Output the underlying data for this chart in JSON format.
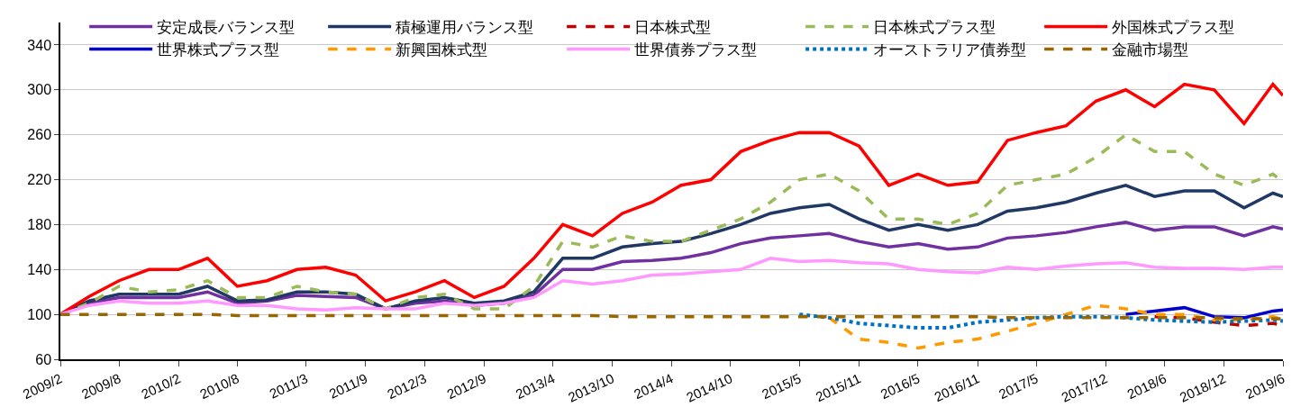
{
  "chart_data": {
    "type": "line",
    "x": [
      "2009-02",
      "2009-05",
      "2009-08",
      "2009-11",
      "2010-02",
      "2010-05",
      "2010-08",
      "2010-11",
      "2011-02",
      "2011-05",
      "2011-08",
      "2011-11",
      "2012-02",
      "2012-05",
      "2012-08",
      "2012-11",
      "2013-02",
      "2013-05",
      "2013-08",
      "2013-11",
      "2014-02",
      "2014-05",
      "2014-08",
      "2014-11",
      "2015-02",
      "2015-05",
      "2015-08",
      "2015-11",
      "2016-02",
      "2016-05",
      "2016-08",
      "2016-11",
      "2017-02",
      "2017-05",
      "2017-08",
      "2017-11",
      "2018-02",
      "2018-05",
      "2018-08",
      "2018-11",
      "2019-02",
      "2019-05",
      "2019-06"
    ],
    "series": [
      {
        "name": "安定成長バランス型",
        "color": "#7030a0",
        "line_style": "solid",
        "values": [
          100,
          110,
          115,
          115,
          115,
          120,
          110,
          112,
          117,
          116,
          115,
          105,
          110,
          112,
          108,
          110,
          117,
          140,
          140,
          147,
          148,
          150,
          155,
          163,
          168,
          170,
          172,
          165,
          160,
          163,
          158,
          160,
          168,
          170,
          173,
          178,
          182,
          175,
          178,
          178,
          170,
          178,
          176
        ]
      },
      {
        "name": "積極運用バランス型",
        "color": "#1f3864",
        "line_style": "solid",
        "values": [
          100,
          112,
          118,
          118,
          118,
          125,
          112,
          113,
          120,
          120,
          118,
          105,
          112,
          115,
          110,
          112,
          120,
          150,
          150,
          160,
          163,
          165,
          172,
          180,
          190,
          195,
          198,
          185,
          175,
          180,
          175,
          180,
          192,
          195,
          200,
          208,
          215,
          205,
          210,
          210,
          195,
          208,
          205
        ]
      },
      {
        "name": "日本株式型",
        "color": "#c00000",
        "line_style": "dashed",
        "values": [
          null,
          null,
          null,
          null,
          null,
          null,
          null,
          null,
          null,
          null,
          null,
          null,
          null,
          null,
          null,
          null,
          null,
          null,
          null,
          null,
          null,
          null,
          null,
          null,
          null,
          null,
          null,
          null,
          null,
          null,
          null,
          null,
          null,
          null,
          null,
          null,
          null,
          98,
          97,
          93,
          90,
          92,
          90
        ]
      },
      {
        "name": "日本株式プラス型",
        "color": "#9bbb59",
        "line_style": "dashed",
        "values": [
          100,
          110,
          125,
          120,
          122,
          130,
          115,
          115,
          125,
          120,
          118,
          105,
          115,
          118,
          105,
          105,
          125,
          165,
          160,
          170,
          165,
          165,
          175,
          185,
          200,
          220,
          225,
          210,
          185,
          185,
          180,
          190,
          215,
          220,
          225,
          240,
          260,
          245,
          245,
          225,
          215,
          225,
          218
        ]
      },
      {
        "name": "外国株式プラス型",
        "color": "#ff0000",
        "line_style": "solid",
        "values": [
          100,
          116,
          130,
          140,
          140,
          150,
          125,
          130,
          140,
          142,
          135,
          112,
          120,
          130,
          115,
          125,
          150,
          180,
          170,
          190,
          200,
          215,
          220,
          245,
          255,
          262,
          262,
          250,
          215,
          225,
          215,
          218,
          255,
          262,
          268,
          290,
          300,
          285,
          305,
          300,
          270,
          305,
          295
        ]
      },
      {
        "name": "世界株式プラス型",
        "color": "#0000cc",
        "line_style": "solid",
        "values": [
          null,
          null,
          null,
          null,
          null,
          null,
          null,
          null,
          null,
          null,
          null,
          null,
          null,
          null,
          null,
          null,
          null,
          null,
          null,
          null,
          null,
          null,
          null,
          null,
          null,
          null,
          null,
          null,
          null,
          null,
          null,
          null,
          null,
          null,
          null,
          null,
          100,
          103,
          106,
          98,
          97,
          103,
          104
        ]
      },
      {
        "name": "新興国株式型",
        "color": "#ff9900",
        "line_style": "dashed",
        "values": [
          null,
          null,
          null,
          null,
          null,
          null,
          null,
          null,
          null,
          null,
          null,
          null,
          null,
          null,
          null,
          null,
          null,
          null,
          null,
          null,
          null,
          null,
          null,
          null,
          null,
          null,
          97,
          78,
          75,
          70,
          75,
          78,
          85,
          92,
          100,
          108,
          105,
          100,
          100,
          95,
          95,
          98,
          95
        ]
      },
      {
        "name": "世界債券プラス型",
        "color": "#ff99ff",
        "line_style": "solid",
        "values": [
          100,
          108,
          112,
          110,
          110,
          112,
          108,
          108,
          105,
          104,
          106,
          105,
          105,
          110,
          108,
          110,
          115,
          130,
          127,
          130,
          135,
          136,
          138,
          140,
          150,
          147,
          148,
          146,
          145,
          140,
          138,
          137,
          142,
          140,
          143,
          145,
          146,
          142,
          141,
          141,
          140,
          142,
          142
        ]
      },
      {
        "name": "オーストラリア債券型",
        "color": "#0070c0",
        "line_style": "dotted",
        "values": [
          null,
          null,
          null,
          null,
          null,
          null,
          null,
          null,
          null,
          null,
          null,
          null,
          null,
          null,
          null,
          null,
          null,
          null,
          null,
          null,
          null,
          null,
          null,
          null,
          null,
          100,
          97,
          92,
          90,
          88,
          88,
          93,
          95,
          97,
          98,
          98,
          97,
          95,
          94,
          93,
          94,
          95,
          94
        ]
      },
      {
        "name": "金融市場型",
        "color": "#996600",
        "line_style": "dashed",
        "values": [
          100,
          100,
          100,
          100,
          100,
          100,
          99,
          99,
          99,
          99,
          99,
          99,
          99,
          99,
          99,
          99,
          99,
          99,
          99,
          98,
          98,
          98,
          98,
          98,
          98,
          98,
          98,
          98,
          98,
          98,
          98,
          98,
          97,
          97,
          97,
          97,
          97,
          97,
          97,
          97,
          96,
          96,
          96
        ]
      }
    ],
    "ylim": [
      60,
      360
    ],
    "yticks": [
      60,
      100,
      140,
      180,
      220,
      260,
      300,
      340
    ],
    "xlim": [
      "2009-02",
      "2019-06"
    ],
    "xticks": [
      {
        "value": "2009-02",
        "label": "2009/2"
      },
      {
        "value": "2009-08",
        "label": "2009/8"
      },
      {
        "value": "2010-02",
        "label": "2010/2"
      },
      {
        "value": "2010-08",
        "label": "2010/8"
      },
      {
        "value": "2011-03",
        "label": "2011/3"
      },
      {
        "value": "2011-09",
        "label": "2011/9"
      },
      {
        "value": "2012-03",
        "label": "2012/3"
      },
      {
        "value": "2012-09",
        "label": "2012/9"
      },
      {
        "value": "2013-04",
        "label": "2013/4"
      },
      {
        "value": "2013-10",
        "label": "2013/10"
      },
      {
        "value": "2014-04",
        "label": "2014/4"
      },
      {
        "value": "2014-10",
        "label": "2014/10"
      },
      {
        "value": "2015-05",
        "label": "2015/5"
      },
      {
        "value": "2015-11",
        "label": "2015/11"
      },
      {
        "value": "2016-05",
        "label": "2016/5"
      },
      {
        "value": "2016-11",
        "label": "2016/11"
      },
      {
        "value": "2017-05",
        "label": "2017/5"
      },
      {
        "value": "2017-12",
        "label": "2017/12"
      },
      {
        "value": "2018-06",
        "label": "2018/6"
      },
      {
        "value": "2018-12",
        "label": "2018/12"
      },
      {
        "value": "2019-06",
        "label": "2019/6"
      }
    ],
    "grid": "y",
    "legend": "top left",
    "marker": "none"
  }
}
